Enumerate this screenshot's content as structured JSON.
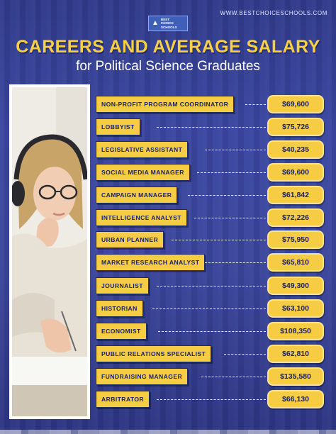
{
  "header": {
    "url": "WWW.BESTCHOICESCHOOLS.COM",
    "logo_lines": [
      "BEST",
      "CHOICE",
      "SCHOOLS"
    ],
    "title": "CAREERS AND AVERAGE SALARY",
    "subtitle": "for Political Science Graduates"
  },
  "careers": [
    {
      "label": "NON-PROFIT PROGRAM COORDINATOR",
      "salary": "$69,600"
    },
    {
      "label": "LOBBYIST",
      "salary": "$75,726"
    },
    {
      "label": "LEGISLATIVE ASSISTANT",
      "salary": "$40,235"
    },
    {
      "label": "SOCIAL MEDIA MANAGER",
      "salary": "$69,600"
    },
    {
      "label": "CAMPAIGN MANAGER",
      "salary": "$61,842"
    },
    {
      "label": "INTELLIGENCE ANALYST",
      "salary": "$72,226"
    },
    {
      "label": "URBAN PLANNER",
      "salary": "$75,950"
    },
    {
      "label": "MARKET RESEARCH ANALYST",
      "salary": "$65,810"
    },
    {
      "label": "JOURNALIST",
      "salary": "$49,300"
    },
    {
      "label": "HISTORIAN",
      "salary": "$63,100"
    },
    {
      "label": "ECONOMIST",
      "salary": "$108,350"
    },
    {
      "label": "PUBLIC RELATIONS SPECIALIST",
      "salary": "$62,810"
    },
    {
      "label": "FUNDRAISING MANAGER",
      "salary": "$135,580"
    },
    {
      "label": "ARBITRATOR",
      "salary": "$66,130"
    }
  ],
  "colors": {
    "background": "#3a46a0",
    "accent_yellow": "#f6cc45",
    "title_yellow": "#f6cf46",
    "label_text": "#1b2260"
  }
}
